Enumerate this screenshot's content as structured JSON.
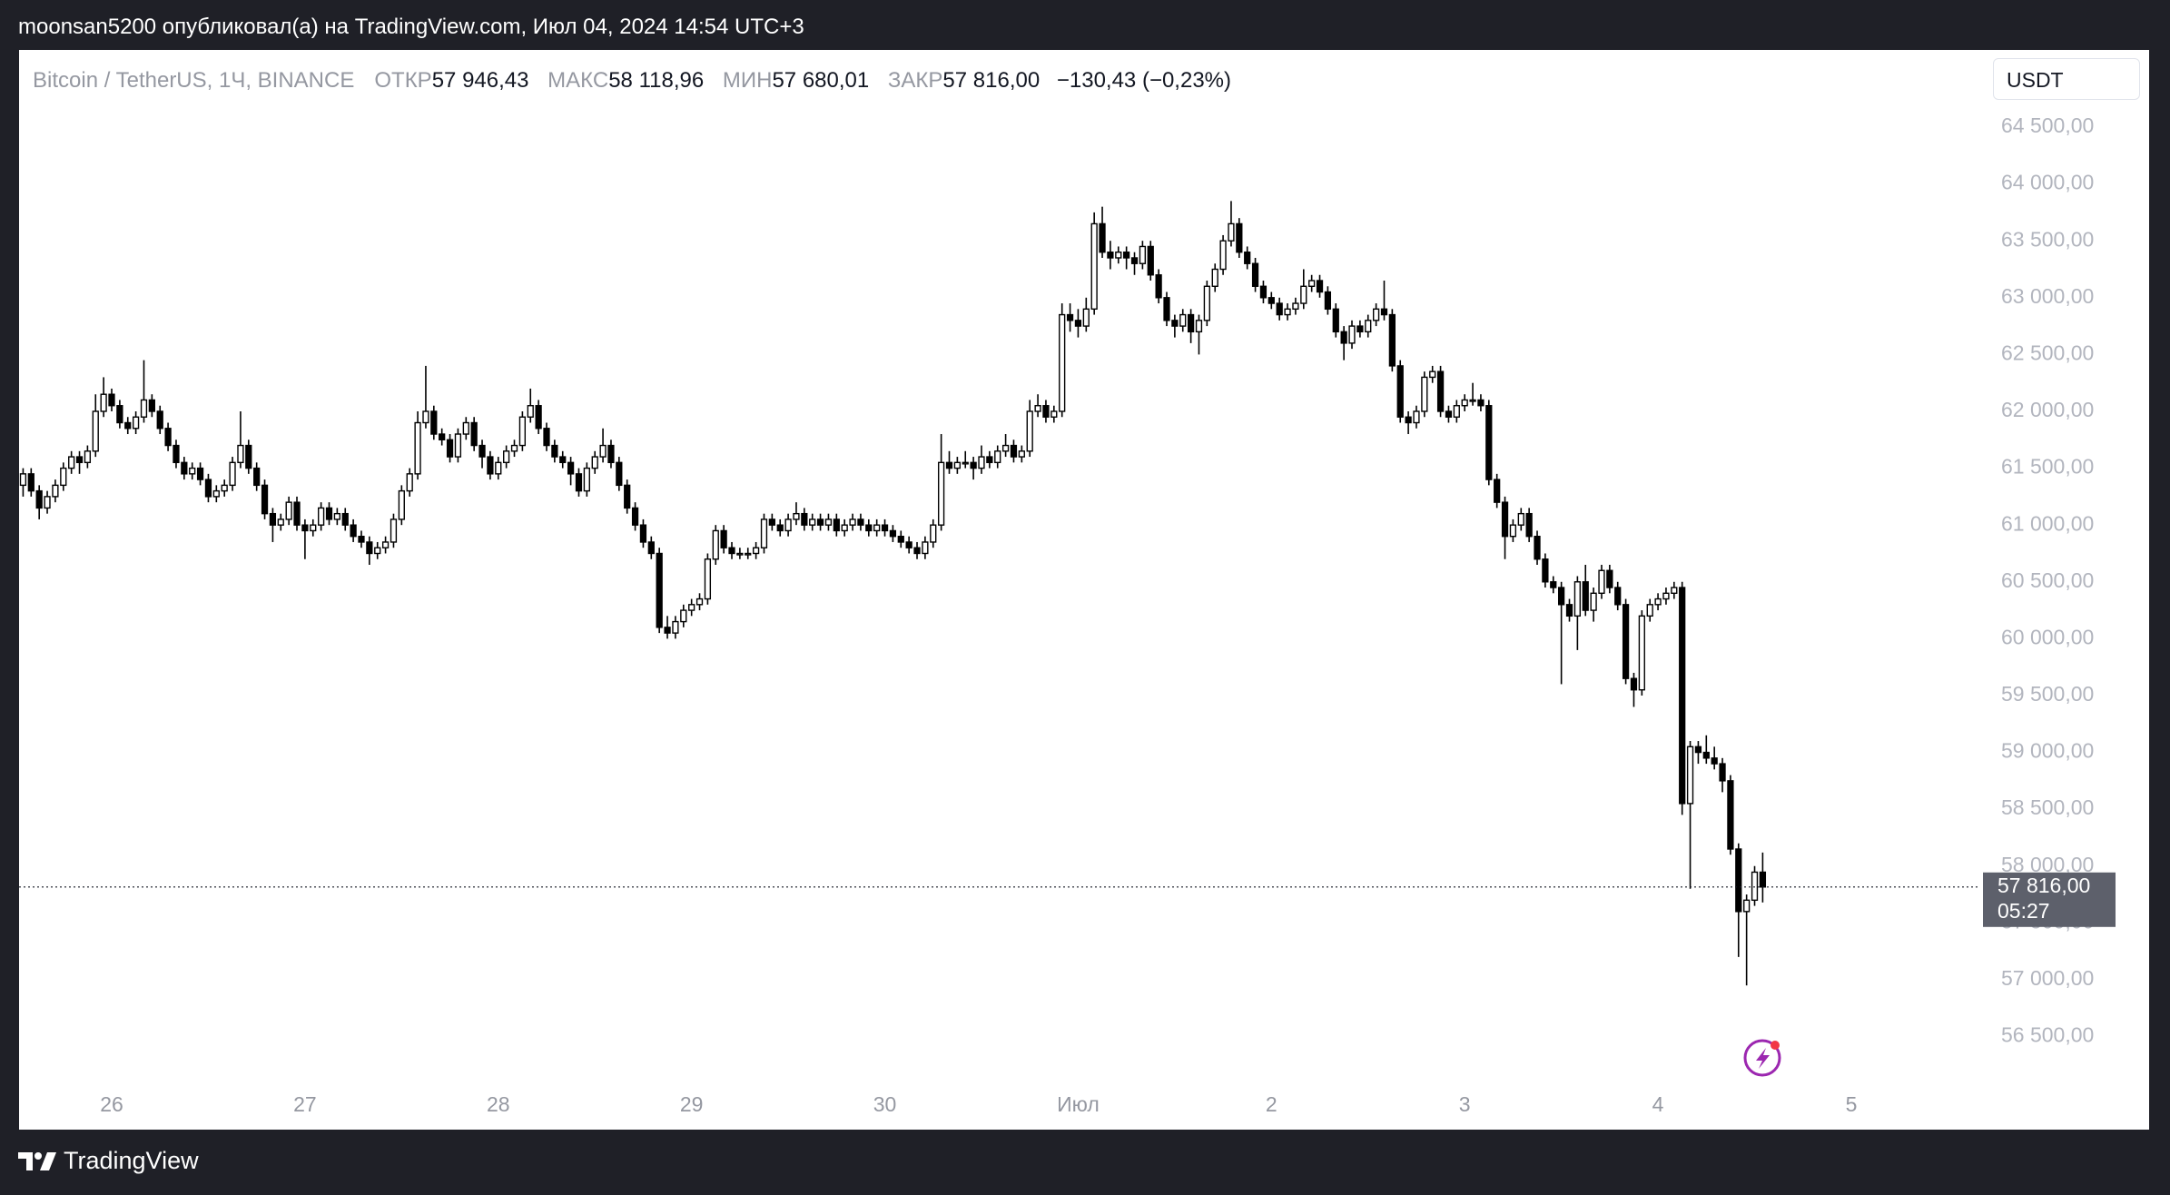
{
  "header": {
    "text": "moonsan5200 опубликовал(а) на TradingView.com, Июл 04, 2024 14:54 UTC+3"
  },
  "footer": {
    "brand": "TradingView"
  },
  "chart_data": {
    "type": "candlestick",
    "legend": {
      "symbol": "Bitcoin / TetherUS, 1Ч, BINANCE",
      "open_label": "ОТКР",
      "open": "57 946,43",
      "high_label": "МАКС",
      "high": "58 118,96",
      "low_label": "МИН",
      "low": "57 680,01",
      "close_label": "ЗАКР",
      "close": "57 816,00",
      "change": "−130,43 (−0,23%)"
    },
    "currency": "USDT",
    "last_price_label": "57 816,00",
    "countdown": "05:27",
    "up_color": "#ffffff",
    "down_color": "#000000",
    "border_color": "#000000",
    "xlim": [
      -0.5,
      242.9
    ],
    "xticks": [
      {
        "value": 11,
        "label": "26"
      },
      {
        "value": 35,
        "label": "27"
      },
      {
        "value": 59,
        "label": "28"
      },
      {
        "value": 83,
        "label": "29"
      },
      {
        "value": 107,
        "label": "30"
      },
      {
        "value": 131,
        "label": "Июл"
      },
      {
        "value": 155,
        "label": "2"
      },
      {
        "value": 179,
        "label": "3"
      },
      {
        "value": 203,
        "label": "4"
      },
      {
        "value": 227,
        "label": "5"
      }
    ],
    "ylim": [
      56113,
      65179
    ],
    "yticks": [
      {
        "value": 56500,
        "label": "56 500,00"
      },
      {
        "value": 57000,
        "label": "57 000,00"
      },
      {
        "value": 57500,
        "label": "57 500,00"
      },
      {
        "value": 58000,
        "label": "58 000,00"
      },
      {
        "value": 58500,
        "label": "58 500,00"
      },
      {
        "value": 59000,
        "label": "59 000,00"
      },
      {
        "value": 59500,
        "label": "59 500,00"
      },
      {
        "value": 60000,
        "label": "60 000,00"
      },
      {
        "value": 60500,
        "label": "60 500,00"
      },
      {
        "value": 61000,
        "label": "61 000,00"
      },
      {
        "value": 61500,
        "label": "61 500,00"
      },
      {
        "value": 62000,
        "label": "62 000,00"
      },
      {
        "value": 62500,
        "label": "62 500,00"
      },
      {
        "value": 63000,
        "label": "63 000,00"
      },
      {
        "value": 63500,
        "label": "63 500,00"
      },
      {
        "value": 64000,
        "label": "64 000,00"
      },
      {
        "value": 64500,
        "label": "64 500,00"
      }
    ],
    "candles": [
      [
        61350,
        61500,
        61250,
        61450
      ],
      [
        61450,
        61500,
        61250,
        61300
      ],
      [
        61300,
        61350,
        61050,
        61150
      ],
      [
        61150,
        61300,
        61100,
        61250
      ],
      [
        61250,
        61400,
        61200,
        61350
      ],
      [
        61350,
        61550,
        61300,
        61500
      ],
      [
        61500,
        61650,
        61450,
        61600
      ],
      [
        61600,
        61650,
        61450,
        61550
      ],
      [
        61550,
        61700,
        61500,
        61650
      ],
      [
        61650,
        62150,
        61600,
        62000
      ],
      [
        62000,
        62300,
        61950,
        62150
      ],
      [
        62150,
        62200,
        62000,
        62050
      ],
      [
        62050,
        62100,
        61850,
        61900
      ],
      [
        61900,
        61950,
        61800,
        61850
      ],
      [
        61850,
        62000,
        61800,
        61950
      ],
      [
        61950,
        62450,
        61900,
        62100
      ],
      [
        62100,
        62150,
        61950,
        62000
      ],
      [
        62000,
        62050,
        61800,
        61850
      ],
      [
        61850,
        61900,
        61650,
        61700
      ],
      [
        61700,
        61750,
        61500,
        61550
      ],
      [
        61550,
        61600,
        61400,
        61450
      ],
      [
        61450,
        61550,
        61400,
        61500
      ],
      [
        61500,
        61550,
        61350,
        61400
      ],
      [
        61400,
        61450,
        61200,
        61250
      ],
      [
        61250,
        61350,
        61200,
        61300
      ],
      [
        61300,
        61400,
        61250,
        61350
      ],
      [
        61350,
        61600,
        61300,
        61550
      ],
      [
        61550,
        62000,
        61500,
        61700
      ],
      [
        61700,
        61750,
        61450,
        61500
      ],
      [
        61500,
        61550,
        61300,
        61350
      ],
      [
        61350,
        61400,
        61050,
        61100
      ],
      [
        61100,
        61150,
        60850,
        61000
      ],
      [
        61000,
        61100,
        60950,
        61050
      ],
      [
        61050,
        61250,
        61000,
        61200
      ],
      [
        61200,
        61250,
        60950,
        61000
      ],
      [
        61000,
        61050,
        60700,
        60950
      ],
      [
        60950,
        61050,
        60900,
        61000
      ],
      [
        61000,
        61200,
        60950,
        61150
      ],
      [
        61150,
        61200,
        61000,
        61050
      ],
      [
        61050,
        61150,
        61000,
        61100
      ],
      [
        61100,
        61150,
        60950,
        61000
      ],
      [
        61000,
        61050,
        60850,
        60900
      ],
      [
        60900,
        60950,
        60800,
        60850
      ],
      [
        60850,
        60900,
        60650,
        60750
      ],
      [
        60750,
        60850,
        60700,
        60800
      ],
      [
        60800,
        60900,
        60750,
        60850
      ],
      [
        60850,
        61100,
        60800,
        61050
      ],
      [
        61050,
        61350,
        61000,
        61300
      ],
      [
        61300,
        61500,
        61250,
        61450
      ],
      [
        61450,
        62000,
        61400,
        61900
      ],
      [
        61900,
        62400,
        61850,
        62000
      ],
      [
        62000,
        62050,
        61750,
        61800
      ],
      [
        61800,
        61850,
        61700,
        61750
      ],
      [
        61750,
        61800,
        61550,
        61600
      ],
      [
        61600,
        61850,
        61550,
        61800
      ],
      [
        61800,
        61950,
        61750,
        61900
      ],
      [
        61900,
        61950,
        61650,
        61700
      ],
      [
        61700,
        61750,
        61500,
        61600
      ],
      [
        61600,
        61650,
        61400,
        61450
      ],
      [
        61450,
        61600,
        61400,
        61550
      ],
      [
        61550,
        61700,
        61500,
        61650
      ],
      [
        61650,
        61750,
        61600,
        61700
      ],
      [
        61700,
        62000,
        61650,
        61950
      ],
      [
        61950,
        62200,
        61900,
        62050
      ],
      [
        62050,
        62100,
        61800,
        61850
      ],
      [
        61850,
        61900,
        61650,
        61700
      ],
      [
        61700,
        61750,
        61550,
        61600
      ],
      [
        61600,
        61650,
        61500,
        61550
      ],
      [
        61550,
        61600,
        61350,
        61450
      ],
      [
        61450,
        61500,
        61250,
        61300
      ],
      [
        61300,
        61550,
        61250,
        61500
      ],
      [
        61500,
        61650,
        61450,
        61600
      ],
      [
        61600,
        61850,
        61550,
        61700
      ],
      [
        61700,
        61750,
        61500,
        61550
      ],
      [
        61550,
        61600,
        61300,
        61350
      ],
      [
        61350,
        61400,
        61100,
        61150
      ],
      [
        61150,
        61200,
        60950,
        61000
      ],
      [
        61000,
        61050,
        60800,
        60850
      ],
      [
        60850,
        60900,
        60700,
        60750
      ],
      [
        60750,
        60800,
        60050,
        60100
      ],
      [
        60100,
        60200,
        60000,
        60050
      ],
      [
        60050,
        60200,
        60000,
        60150
      ],
      [
        60150,
        60300,
        60100,
        60250
      ],
      [
        60250,
        60350,
        60200,
        60300
      ],
      [
        60300,
        60400,
        60250,
        60350
      ],
      [
        60350,
        60750,
        60300,
        60700
      ],
      [
        60700,
        61000,
        60650,
        60950
      ],
      [
        60950,
        61000,
        60750,
        60800
      ],
      [
        60800,
        60850,
        60700,
        60750
      ],
      [
        60750,
        60800,
        60700,
        60750
      ],
      [
        60750,
        60800,
        60700,
        60750
      ],
      [
        60750,
        60850,
        60700,
        60800
      ],
      [
        60800,
        61100,
        60750,
        61050
      ],
      [
        61050,
        61100,
        60950,
        61000
      ],
      [
        61000,
        61050,
        60900,
        60950
      ],
      [
        60950,
        61100,
        60900,
        61050
      ],
      [
        61050,
        61200,
        61000,
        61100
      ],
      [
        61100,
        61150,
        60950,
        61000
      ],
      [
        61000,
        61100,
        60950,
        61050
      ],
      [
        61050,
        61100,
        60950,
        61000
      ],
      [
        61000,
        61100,
        60950,
        61050
      ],
      [
        61050,
        61100,
        60900,
        60950
      ],
      [
        60950,
        61050,
        60900,
        61000
      ],
      [
        61000,
        61100,
        60950,
        61050
      ],
      [
        61050,
        61100,
        60950,
        61000
      ],
      [
        61000,
        61050,
        60900,
        60950
      ],
      [
        60950,
        61050,
        60900,
        61000
      ],
      [
        61000,
        61050,
        60900,
        60950
      ],
      [
        60950,
        61000,
        60850,
        60900
      ],
      [
        60900,
        60950,
        60800,
        60850
      ],
      [
        60850,
        60900,
        60750,
        60800
      ],
      [
        60800,
        60850,
        60700,
        60750
      ],
      [
        60750,
        60900,
        60700,
        60850
      ],
      [
        60850,
        61050,
        60800,
        61000
      ],
      [
        61000,
        61800,
        60950,
        61550
      ],
      [
        61550,
        61650,
        61450,
        61500
      ],
      [
        61500,
        61600,
        61450,
        61550
      ],
      [
        61550,
        61650,
        61500,
        61550
      ],
      [
        61550,
        61600,
        61400,
        61500
      ],
      [
        61500,
        61700,
        61450,
        61600
      ],
      [
        61600,
        61650,
        61500,
        61550
      ],
      [
        61550,
        61700,
        61500,
        61650
      ],
      [
        61650,
        61800,
        61600,
        61700
      ],
      [
        61700,
        61750,
        61550,
        61600
      ],
      [
        61600,
        61700,
        61550,
        61650
      ],
      [
        61650,
        62100,
        61600,
        62000
      ],
      [
        62000,
        62150,
        61950,
        62050
      ],
      [
        62050,
        62100,
        61900,
        61950
      ],
      [
        61950,
        62050,
        61900,
        62000
      ],
      [
        62000,
        62950,
        61950,
        62850
      ],
      [
        62850,
        62950,
        62700,
        62800
      ],
      [
        62800,
        62900,
        62650,
        62750
      ],
      [
        62750,
        63000,
        62700,
        62900
      ],
      [
        62900,
        63750,
        62850,
        63650
      ],
      [
        63650,
        63800,
        63350,
        63400
      ],
      [
        63400,
        63500,
        63250,
        63350
      ],
      [
        63350,
        63450,
        63300,
        63400
      ],
      [
        63400,
        63450,
        63250,
        63350
      ],
      [
        63350,
        63400,
        63200,
        63300
      ],
      [
        63300,
        63500,
        63250,
        63450
      ],
      [
        63450,
        63500,
        63150,
        63200
      ],
      [
        63200,
        63250,
        62950,
        63000
      ],
      [
        63000,
        63050,
        62750,
        62800
      ],
      [
        62800,
        62850,
        62650,
        62750
      ],
      [
        62750,
        62900,
        62700,
        62850
      ],
      [
        62850,
        62900,
        62600,
        62700
      ],
      [
        62700,
        62850,
        62500,
        62800
      ],
      [
        62800,
        63150,
        62750,
        63100
      ],
      [
        63100,
        63300,
        63050,
        63250
      ],
      [
        63250,
        63550,
        63200,
        63500
      ],
      [
        63500,
        63850,
        63450,
        63650
      ],
      [
        63650,
        63700,
        63350,
        63400
      ],
      [
        63400,
        63450,
        63250,
        63300
      ],
      [
        63300,
        63350,
        63050,
        63100
      ],
      [
        63100,
        63150,
        62950,
        63000
      ],
      [
        63000,
        63050,
        62900,
        62950
      ],
      [
        62950,
        63000,
        62800,
        62850
      ],
      [
        62850,
        62950,
        62800,
        62900
      ],
      [
        62900,
        63000,
        62850,
        62950
      ],
      [
        62950,
        63250,
        62900,
        63100
      ],
      [
        63100,
        63200,
        63050,
        63150
      ],
      [
        63150,
        63200,
        63000,
        63050
      ],
      [
        63050,
        63100,
        62850,
        62900
      ],
      [
        62900,
        62950,
        62650,
        62700
      ],
      [
        62700,
        62750,
        62450,
        62600
      ],
      [
        62600,
        62800,
        62550,
        62750
      ],
      [
        62750,
        62800,
        62650,
        62700
      ],
      [
        62700,
        62850,
        62650,
        62800
      ],
      [
        62800,
        62950,
        62750,
        62900
      ],
      [
        62900,
        63150,
        62800,
        62850
      ],
      [
        62850,
        62900,
        62350,
        62400
      ],
      [
        62400,
        62450,
        61900,
        61950
      ],
      [
        61950,
        62000,
        61800,
        61900
      ],
      [
        61900,
        62050,
        61850,
        62000
      ],
      [
        62000,
        62350,
        61950,
        62300
      ],
      [
        62300,
        62400,
        62250,
        62350
      ],
      [
        62350,
        62400,
        61950,
        62000
      ],
      [
        62000,
        62050,
        61900,
        61950
      ],
      [
        61950,
        62100,
        61900,
        62050
      ],
      [
        62050,
        62150,
        62000,
        62100
      ],
      [
        62100,
        62250,
        62050,
        62100
      ],
      [
        62100,
        62150,
        62000,
        62050
      ],
      [
        62050,
        62100,
        61350,
        61400
      ],
      [
        61400,
        61450,
        61150,
        61200
      ],
      [
        61200,
        61250,
        60700,
        60900
      ],
      [
        60900,
        61050,
        60850,
        61000
      ],
      [
        61000,
        61150,
        60950,
        61100
      ],
      [
        61100,
        61150,
        60850,
        60900
      ],
      [
        60900,
        60950,
        60650,
        60700
      ],
      [
        60700,
        60750,
        60450,
        60500
      ],
      [
        60500,
        60550,
        60400,
        60450
      ],
      [
        60450,
        60500,
        59600,
        60300
      ],
      [
        60300,
        60350,
        60150,
        60200
      ],
      [
        60200,
        60550,
        59900,
        60500
      ],
      [
        60500,
        60650,
        60200,
        60250
      ],
      [
        60250,
        60450,
        60150,
        60400
      ],
      [
        60400,
        60650,
        60350,
        60600
      ],
      [
        60600,
        60650,
        60400,
        60450
      ],
      [
        60450,
        60500,
        60250,
        60300
      ],
      [
        60300,
        60350,
        59600,
        59650
      ],
      [
        59650,
        59700,
        59400,
        59550
      ],
      [
        59550,
        60250,
        59500,
        60200
      ],
      [
        60200,
        60350,
        60150,
        60300
      ],
      [
        60300,
        60400,
        60250,
        60350
      ],
      [
        60350,
        60450,
        60300,
        60400
      ],
      [
        60400,
        60500,
        60350,
        60450
      ],
      [
        60450,
        60500,
        58450,
        58550
      ],
      [
        58550,
        59100,
        57800,
        59050
      ],
      [
        59050,
        59100,
        58900,
        59000
      ],
      [
        59000,
        59150,
        58900,
        58950
      ],
      [
        58950,
        59050,
        58850,
        58900
      ],
      [
        58900,
        58950,
        58650,
        58750
      ],
      [
        58750,
        58800,
        58100,
        58150
      ],
      [
        58150,
        58200,
        57200,
        57600
      ],
      [
        57600,
        57750,
        56950,
        57700
      ],
      [
        57700,
        58000,
        57650,
        57946.43
      ],
      [
        57946.43,
        58118.96,
        57680.01,
        57816
      ]
    ]
  }
}
